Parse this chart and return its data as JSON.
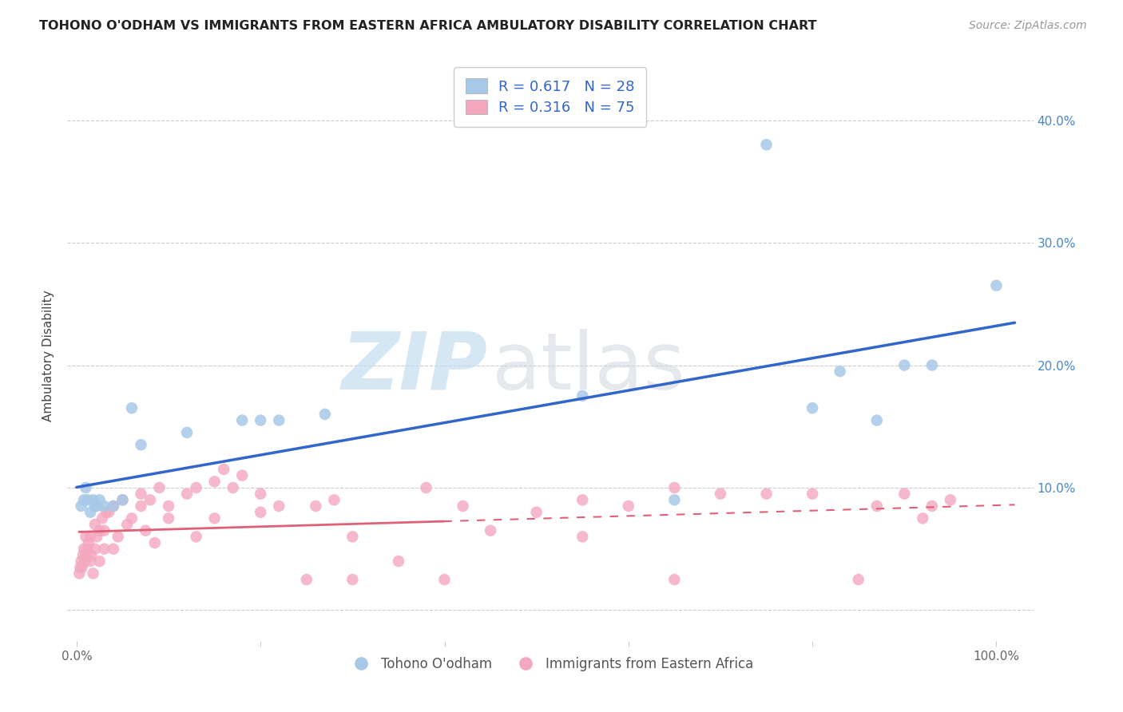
{
  "title": "TOHONO O'ODHAM VS IMMIGRANTS FROM EASTERN AFRICA AMBULATORY DISABILITY CORRELATION CHART",
  "source": "Source: ZipAtlas.com",
  "ylabel": "Ambulatory Disability",
  "blue_label": "Tohono O'odham",
  "pink_label": "Immigrants from Eastern Africa",
  "blue_R": "0.617",
  "blue_N": "28",
  "pink_R": "0.316",
  "pink_N": "75",
  "blue_color": "#a8c8e8",
  "pink_color": "#f4a8c0",
  "blue_line_color": "#3366cc",
  "pink_line_color": "#e0607a",
  "background_color": "#ffffff",
  "ytick_vals": [
    0.0,
    0.1,
    0.2,
    0.3,
    0.4
  ],
  "ytick_labels": [
    "",
    "10.0%",
    "20.0%",
    "30.0%",
    "40.0%"
  ],
  "xtick_vals": [
    0.0,
    0.2,
    0.4,
    0.6,
    0.8,
    1.0
  ],
  "xtick_labels": [
    "0.0%",
    "",
    "",
    "",
    "",
    "100.0%"
  ],
  "xlim": [
    -0.01,
    1.04
  ],
  "ylim": [
    -0.025,
    0.44
  ],
  "blue_x": [
    0.005,
    0.008,
    0.01,
    0.012,
    0.015,
    0.018,
    0.02,
    0.022,
    0.025,
    0.03,
    0.04,
    0.05,
    0.06,
    0.07,
    0.12,
    0.18,
    0.2,
    0.22,
    0.27,
    0.55,
    0.65,
    0.75,
    0.8,
    0.83,
    0.87,
    0.9,
    0.93,
    1.0
  ],
  "blue_y": [
    0.085,
    0.09,
    0.1,
    0.09,
    0.08,
    0.09,
    0.085,
    0.085,
    0.09,
    0.085,
    0.085,
    0.09,
    0.165,
    0.135,
    0.145,
    0.155,
    0.155,
    0.155,
    0.16,
    0.175,
    0.09,
    0.38,
    0.165,
    0.195,
    0.155,
    0.2,
    0.2,
    0.265
  ],
  "pink_x": [
    0.003,
    0.004,
    0.005,
    0.006,
    0.007,
    0.008,
    0.009,
    0.01,
    0.01,
    0.012,
    0.013,
    0.015,
    0.015,
    0.016,
    0.018,
    0.02,
    0.02,
    0.022,
    0.025,
    0.025,
    0.028,
    0.03,
    0.03,
    0.032,
    0.035,
    0.04,
    0.04,
    0.045,
    0.05,
    0.055,
    0.06,
    0.07,
    0.07,
    0.075,
    0.08,
    0.085,
    0.09,
    0.1,
    0.1,
    0.12,
    0.13,
    0.13,
    0.15,
    0.15,
    0.16,
    0.17,
    0.18,
    0.2,
    0.2,
    0.22,
    0.25,
    0.26,
    0.28,
    0.3,
    0.3,
    0.35,
    0.38,
    0.4,
    0.42,
    0.45,
    0.5,
    0.55,
    0.55,
    0.6,
    0.65,
    0.65,
    0.7,
    0.75,
    0.8,
    0.85,
    0.87,
    0.9,
    0.92,
    0.93,
    0.95
  ],
  "pink_y": [
    0.03,
    0.035,
    0.04,
    0.035,
    0.045,
    0.05,
    0.04,
    0.045,
    0.06,
    0.05,
    0.055,
    0.04,
    0.06,
    0.045,
    0.03,
    0.05,
    0.07,
    0.06,
    0.065,
    0.04,
    0.075,
    0.065,
    0.05,
    0.08,
    0.08,
    0.085,
    0.05,
    0.06,
    0.09,
    0.07,
    0.075,
    0.085,
    0.095,
    0.065,
    0.09,
    0.055,
    0.1,
    0.075,
    0.085,
    0.095,
    0.1,
    0.06,
    0.105,
    0.075,
    0.115,
    0.1,
    0.11,
    0.08,
    0.095,
    0.085,
    0.025,
    0.085,
    0.09,
    0.025,
    0.06,
    0.04,
    0.1,
    0.025,
    0.085,
    0.065,
    0.08,
    0.06,
    0.09,
    0.085,
    0.1,
    0.025,
    0.095,
    0.095,
    0.095,
    0.025,
    0.085,
    0.095,
    0.075,
    0.085,
    0.09
  ]
}
